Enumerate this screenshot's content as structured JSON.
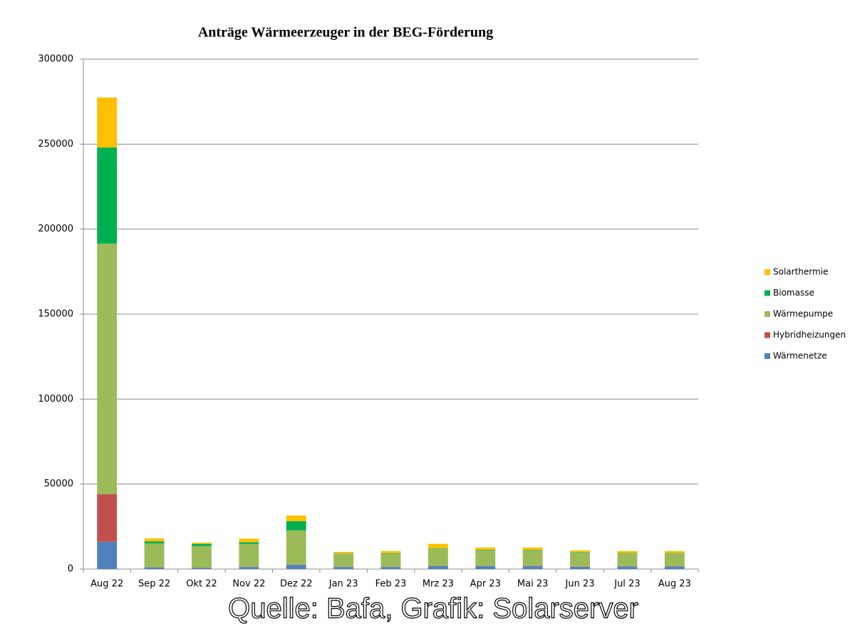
{
  "chart_data": {
    "type": "stacked-bar",
    "title": "Anträge Wärmeerzeuger in der  BEG-Förderung",
    "source": "Quelle: Bafa, Grafik: Solarserver",
    "categories": [
      "Aug 22",
      "Sep 22",
      "Okt 22",
      "Nov 22",
      "Dez 22",
      "Jan 23",
      "Feb 23",
      "Mrz 23",
      "Apr 23",
      "Mai 23",
      "Jun 23",
      "Jul 23",
      "Aug 23"
    ],
    "series": [
      {
        "name": "Wärmenetze",
        "color": "#4f81bd",
        "values": [
          16000,
          1000,
          700,
          1200,
          2500,
          1200,
          1200,
          1800,
          1700,
          1800,
          1300,
          1500,
          1500
        ]
      },
      {
        "name": "Hybridheizungen",
        "color": "#c0504d",
        "values": [
          28000,
          100,
          100,
          100,
          100,
          100,
          100,
          100,
          100,
          100,
          100,
          100,
          100
        ]
      },
      {
        "name": "Wärmepumpe",
        "color": "#9bbb59",
        "values": [
          147500,
          14000,
          12700,
          13500,
          20100,
          7600,
          7600,
          9900,
          9200,
          9000,
          8300,
          7600,
          7700
        ]
      },
      {
        "name": "Biomasse",
        "color": "#00b050",
        "values": [
          56500,
          1200,
          1300,
          1000,
          5500,
          200,
          300,
          300,
          300,
          300,
          300,
          200,
          200
        ]
      },
      {
        "name": "Solarthermie",
        "color": "#ffc000",
        "values": [
          29400,
          1700,
          800,
          2100,
          3300,
          1000,
          1400,
          2700,
          1400,
          1500,
          1000,
          1200,
          1100
        ]
      }
    ],
    "ylim": [
      0,
      300000
    ],
    "yticks": [
      0,
      50000,
      100000,
      150000,
      200000,
      250000,
      300000
    ],
    "grid": true,
    "legend": "right"
  }
}
